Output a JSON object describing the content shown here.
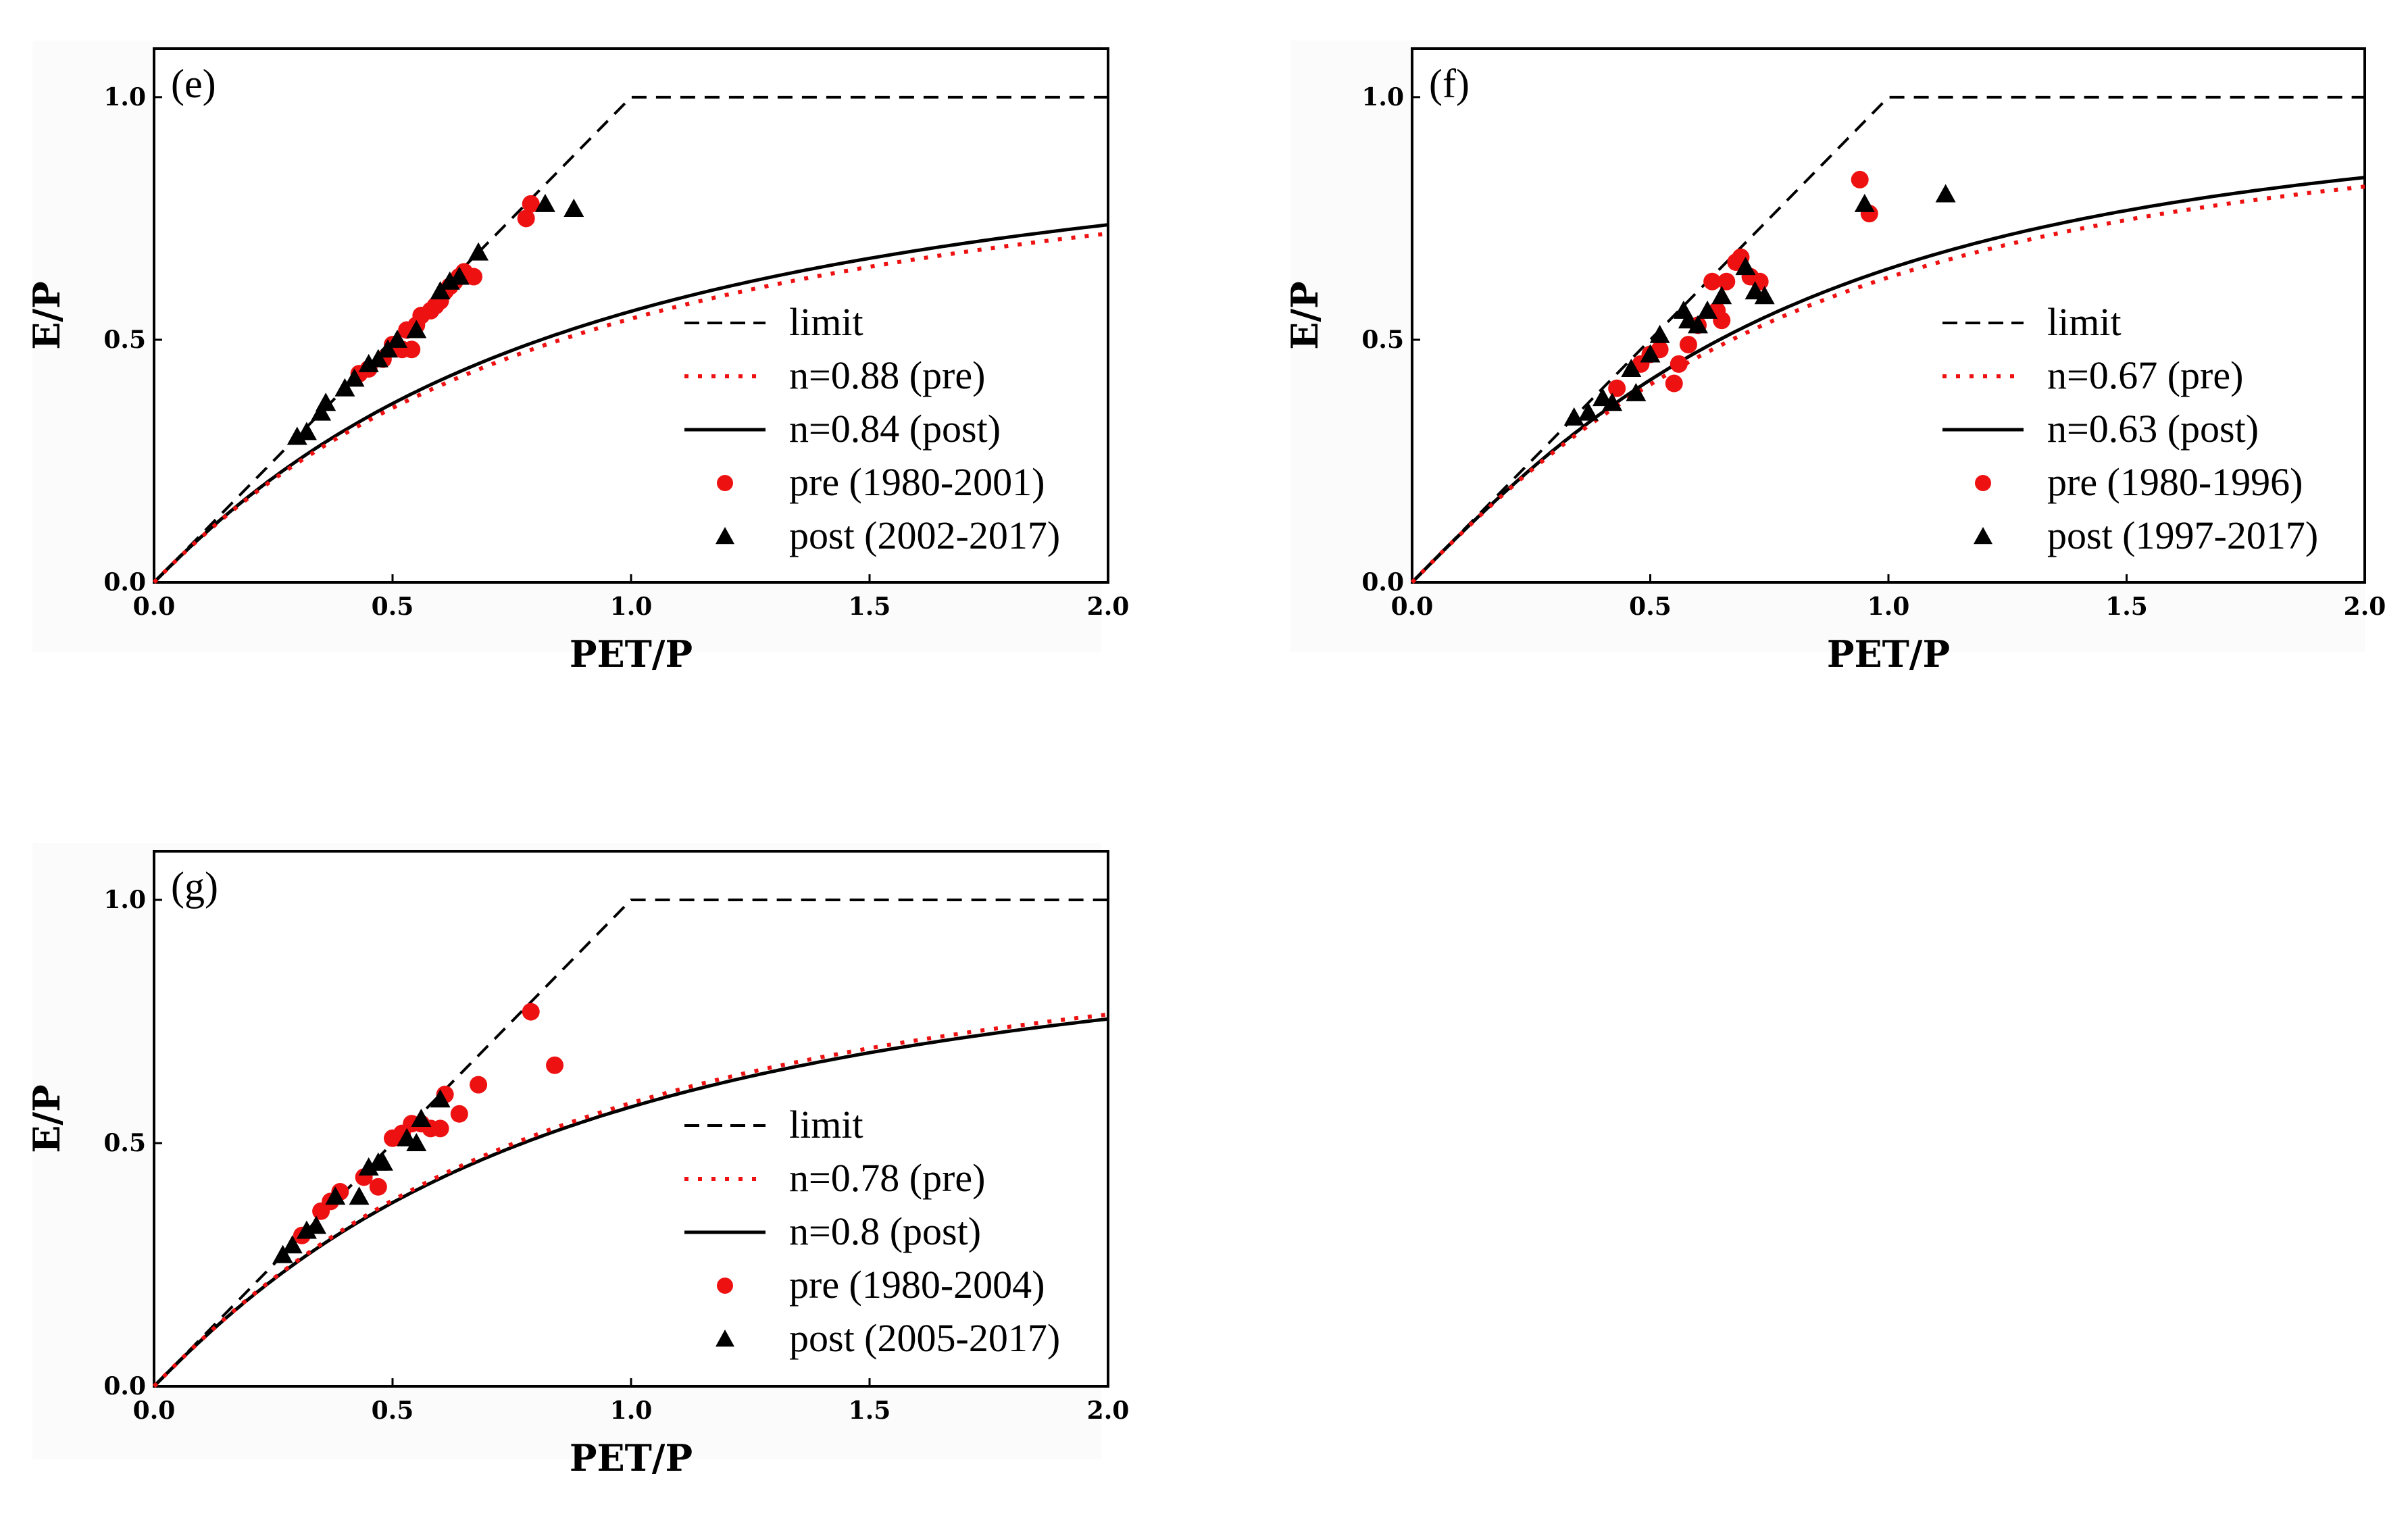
{
  "colors": {
    "pre": "#ee1111",
    "post": "#000000",
    "limit": "#000000",
    "axis": "#000000"
  },
  "chart_data": [
    {
      "type": "scatter",
      "panel": "(e)",
      "xlabel": "PET/P",
      "ylabel": "E/P",
      "xlim": [
        0,
        2.0
      ],
      "ylim": [
        0,
        1.1
      ],
      "xticks": [
        "0.0",
        "0.5",
        "1.0",
        "1.5",
        "2.0"
      ],
      "yticks": [
        "0.0",
        "0.5",
        "1.0"
      ],
      "legend_position": "lower-right",
      "legend": {
        "limit": "limit",
        "pre_curve": "n=0.88 (pre)",
        "post_curve": "n=0.84 (post)",
        "pre_points": "pre (1980-2001)",
        "post_points": "post (2002-2017)"
      },
      "curves": {
        "pre_n": 0.88,
        "post_n": 0.84
      },
      "series": [
        {
          "name": "pre (1980-2001)",
          "marker": "circle",
          "points": [
            [
              0.43,
              0.43
            ],
            [
              0.45,
              0.44
            ],
            [
              0.48,
              0.46
            ],
            [
              0.5,
              0.49
            ],
            [
              0.52,
              0.48
            ],
            [
              0.53,
              0.52
            ],
            [
              0.55,
              0.53
            ],
            [
              0.56,
              0.55
            ],
            [
              0.58,
              0.56
            ],
            [
              0.59,
              0.57
            ],
            [
              0.6,
              0.58
            ],
            [
              0.61,
              0.6
            ],
            [
              0.62,
              0.61
            ],
            [
              0.63,
              0.62
            ],
            [
              0.64,
              0.63
            ],
            [
              0.65,
              0.64
            ],
            [
              0.67,
              0.63
            ],
            [
              0.54,
              0.48
            ],
            [
              0.78,
              0.75
            ],
            [
              0.79,
              0.78
            ]
          ]
        },
        {
          "name": "post (2002-2017)",
          "marker": "triangle",
          "points": [
            [
              0.3,
              0.3
            ],
            [
              0.32,
              0.31
            ],
            [
              0.35,
              0.35
            ],
            [
              0.36,
              0.37
            ],
            [
              0.4,
              0.4
            ],
            [
              0.42,
              0.42
            ],
            [
              0.45,
              0.45
            ],
            [
              0.47,
              0.46
            ],
            [
              0.49,
              0.48
            ],
            [
              0.51,
              0.5
            ],
            [
              0.55,
              0.52
            ],
            [
              0.6,
              0.6
            ],
            [
              0.62,
              0.62
            ],
            [
              0.64,
              0.63
            ],
            [
              0.68,
              0.68
            ],
            [
              0.82,
              0.78
            ],
            [
              0.88,
              0.77
            ]
          ]
        }
      ]
    },
    {
      "type": "scatter",
      "panel": "(f)",
      "xlabel": "PET/P",
      "ylabel": "E/P",
      "xlim": [
        0,
        2.0
      ],
      "ylim": [
        0,
        1.1
      ],
      "xticks": [
        "0.0",
        "0.5",
        "1.0",
        "1.5",
        "2.0"
      ],
      "yticks": [
        "0.0",
        "0.5",
        "1.0"
      ],
      "legend_position": "lower-right",
      "legend": {
        "limit": "limit",
        "pre_curve": "n=0.67 (pre)",
        "post_curve": "n=0.63 (post)",
        "pre_points": "pre (1980-1996)",
        "post_points": "post (1997-2017)"
      },
      "curves": {
        "pre_n": 0.67,
        "post_n": 0.63
      },
      "series": [
        {
          "name": "pre (1980-1996)",
          "marker": "circle",
          "points": [
            [
              0.43,
              0.4
            ],
            [
              0.48,
              0.45
            ],
            [
              0.5,
              0.47
            ],
            [
              0.52,
              0.48
            ],
            [
              0.55,
              0.41
            ],
            [
              0.56,
              0.45
            ],
            [
              0.58,
              0.49
            ],
            [
              0.6,
              0.53
            ],
            [
              0.63,
              0.62
            ],
            [
              0.64,
              0.56
            ],
            [
              0.65,
              0.54
            ],
            [
              0.66,
              0.62
            ],
            [
              0.68,
              0.66
            ],
            [
              0.69,
              0.67
            ],
            [
              0.71,
              0.63
            ],
            [
              0.73,
              0.62
            ],
            [
              0.94,
              0.83
            ],
            [
              0.96,
              0.76
            ]
          ]
        },
        {
          "name": "post (1997-2017)",
          "marker": "triangle",
          "points": [
            [
              0.34,
              0.34
            ],
            [
              0.37,
              0.35
            ],
            [
              0.4,
              0.38
            ],
            [
              0.42,
              0.37
            ],
            [
              0.46,
              0.44
            ],
            [
              0.47,
              0.39
            ],
            [
              0.5,
              0.47
            ],
            [
              0.52,
              0.51
            ],
            [
              0.57,
              0.56
            ],
            [
              0.58,
              0.54
            ],
            [
              0.6,
              0.53
            ],
            [
              0.62,
              0.56
            ],
            [
              0.65,
              0.59
            ],
            [
              0.7,
              0.65
            ],
            [
              0.72,
              0.6
            ],
            [
              0.74,
              0.59
            ],
            [
              0.95,
              0.78
            ],
            [
              1.12,
              0.8
            ]
          ]
        }
      ]
    },
    {
      "type": "scatter",
      "panel": "(g)",
      "xlabel": "PET/P",
      "ylabel": "E/P",
      "xlim": [
        0,
        2.0
      ],
      "ylim": [
        0,
        1.1
      ],
      "xticks": [
        "0.0",
        "0.5",
        "1.0",
        "1.5",
        "2.0"
      ],
      "yticks": [
        "0.0",
        "0.5",
        "1.0"
      ],
      "legend_position": "lower-right",
      "legend": {
        "limit": "limit",
        "pre_curve": "n=0.78 (pre)",
        "post_curve": "n=0.8 (post)",
        "pre_points": "pre (1980-2004)",
        "post_points": "post (2005-2017)"
      },
      "curves": {
        "pre_n": 0.78,
        "post_n": 0.8
      },
      "series": [
        {
          "name": "pre (1980-2004)",
          "marker": "circle",
          "points": [
            [
              0.31,
              0.31
            ],
            [
              0.35,
              0.36
            ],
            [
              0.37,
              0.38
            ],
            [
              0.39,
              0.4
            ],
            [
              0.44,
              0.43
            ],
            [
              0.47,
              0.41
            ],
            [
              0.5,
              0.51
            ],
            [
              0.52,
              0.52
            ],
            [
              0.54,
              0.54
            ],
            [
              0.56,
              0.54
            ],
            [
              0.58,
              0.53
            ],
            [
              0.6,
              0.53
            ],
            [
              0.61,
              0.6
            ],
            [
              0.64,
              0.56
            ],
            [
              0.68,
              0.62
            ],
            [
              0.79,
              0.77
            ],
            [
              0.84,
              0.66
            ]
          ]
        },
        {
          "name": "post (2005-2017)",
          "marker": "triangle",
          "points": [
            [
              0.27,
              0.27
            ],
            [
              0.29,
              0.29
            ],
            [
              0.32,
              0.32
            ],
            [
              0.34,
              0.33
            ],
            [
              0.38,
              0.39
            ],
            [
              0.43,
              0.39
            ],
            [
              0.45,
              0.45
            ],
            [
              0.47,
              0.46
            ],
            [
              0.48,
              0.46
            ],
            [
              0.53,
              0.51
            ],
            [
              0.55,
              0.5
            ],
            [
              0.56,
              0.55
            ],
            [
              0.6,
              0.59
            ]
          ]
        }
      ]
    }
  ]
}
